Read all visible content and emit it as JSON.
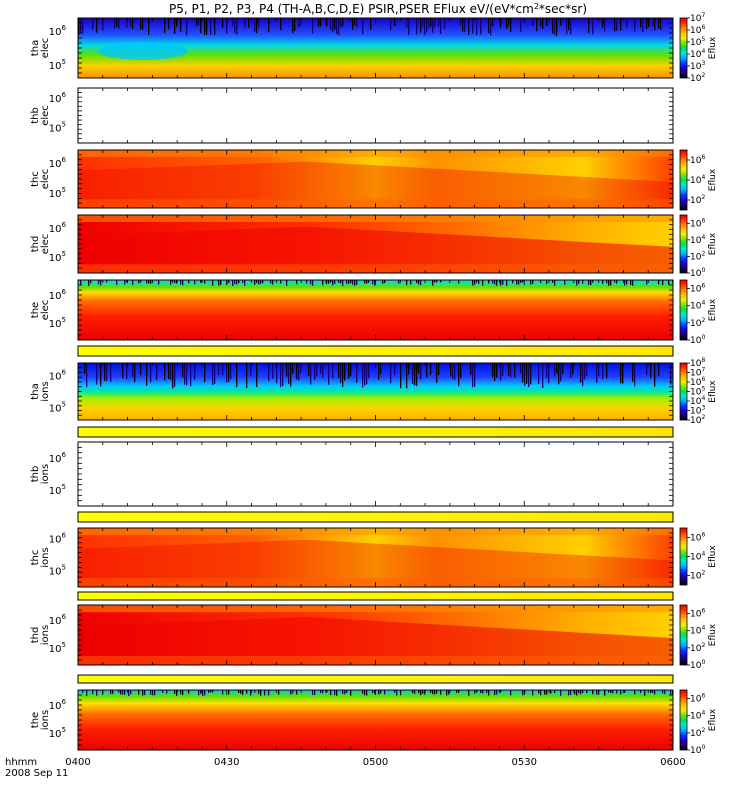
{
  "chart_data": {
    "type": "heatmap",
    "title": "P5, P1, P2, P3, P4 (TH-A,B,C,D,E) PSIR,PSER EFlux eV/(eV*cm",
    "title_sup": "2",
    "title_end": "*sec*sr)",
    "x_axis": {
      "prefix": "hhmm",
      "date": "2008 Sep 11",
      "ticks": [
        "0400",
        "0430",
        "0500",
        "0530",
        "0600"
      ],
      "range": [
        "04:00",
        "06:00"
      ]
    },
    "colorbar_title": "Eflux",
    "colormap": [
      "#000000",
      "#1a0060",
      "#2200d8",
      "#0040ff",
      "#00b0ff",
      "#00e8d0",
      "#00e060",
      "#80e000",
      "#f0f000",
      "#ffc000",
      "#ff8000",
      "#ff3000",
      "#ea0000"
    ],
    "panels": [
      {
        "probe": "tha",
        "species": "elec",
        "yticks": [
          {
            "base": "10",
            "exp": "6"
          },
          {
            "base": "10",
            "exp": "5"
          }
        ],
        "cbar": [
          {
            "base": "10",
            "exp": "7"
          },
          {
            "base": "10",
            "exp": "6"
          },
          {
            "base": "10",
            "exp": "5"
          },
          {
            "base": "10",
            "exp": "4"
          },
          {
            "base": "10",
            "exp": "3"
          },
          {
            "base": "10",
            "exp": "2"
          }
        ],
        "cbar_range": [
          2,
          7
        ]
      },
      {
        "probe": "thb",
        "species": "elec",
        "yticks": [
          {
            "base": "10",
            "exp": "6"
          },
          {
            "base": "10",
            "exp": "5"
          }
        ],
        "cbar": [],
        "empty": true
      },
      {
        "probe": "thc",
        "species": "elec",
        "yticks": [
          {
            "base": "10",
            "exp": "6"
          },
          {
            "base": "10",
            "exp": "5"
          }
        ],
        "cbar": [
          {
            "base": "10",
            "exp": "6"
          },
          {
            "base": "10",
            "exp": "4"
          },
          {
            "base": "10",
            "exp": "2"
          }
        ],
        "cbar_range": [
          1,
          7
        ]
      },
      {
        "probe": "thd",
        "species": "elec",
        "yticks": [
          {
            "base": "10",
            "exp": "6"
          },
          {
            "base": "10",
            "exp": "5"
          }
        ],
        "cbar": [
          {
            "base": "10",
            "exp": "6"
          },
          {
            "base": "10",
            "exp": "4"
          },
          {
            "base": "10",
            "exp": "2"
          },
          {
            "base": "10",
            "exp": "0"
          }
        ],
        "cbar_range": [
          0,
          7
        ]
      },
      {
        "probe": "the",
        "species": "elec",
        "yticks": [
          {
            "base": "10",
            "exp": "6"
          },
          {
            "base": "10",
            "exp": "5"
          }
        ],
        "cbar": [
          {
            "base": "10",
            "exp": "6"
          },
          {
            "base": "10",
            "exp": "4"
          },
          {
            "base": "10",
            "exp": "2"
          },
          {
            "base": "10",
            "exp": "0"
          }
        ],
        "cbar_range": [
          0,
          7
        ]
      },
      {
        "probe": "tha",
        "species": "ions",
        "yticks": [
          {
            "base": "10",
            "exp": "6"
          },
          {
            "base": "10",
            "exp": "5"
          }
        ],
        "cbar": [
          {
            "base": "10",
            "exp": "8"
          },
          {
            "base": "10",
            "exp": "7"
          },
          {
            "base": "10",
            "exp": "6"
          },
          {
            "base": "10",
            "exp": "5"
          },
          {
            "base": "10",
            "exp": "4"
          },
          {
            "base": "10",
            "exp": "3"
          },
          {
            "base": "10",
            "exp": "2"
          }
        ],
        "cbar_range": [
          2,
          8
        ]
      },
      {
        "probe": "thb",
        "species": "ions",
        "yticks": [
          {
            "base": "10",
            "exp": "6"
          },
          {
            "base": "10",
            "exp": "5"
          }
        ],
        "cbar": [],
        "empty": true
      },
      {
        "probe": "thc",
        "species": "ions",
        "yticks": [
          {
            "base": "10",
            "exp": "6"
          },
          {
            "base": "10",
            "exp": "5"
          }
        ],
        "cbar": [
          {
            "base": "10",
            "exp": "6"
          },
          {
            "base": "10",
            "exp": "4"
          },
          {
            "base": "10",
            "exp": "2"
          }
        ],
        "cbar_range": [
          1,
          7
        ]
      },
      {
        "probe": "thd",
        "species": "ions",
        "yticks": [
          {
            "base": "10",
            "exp": "6"
          },
          {
            "base": "10",
            "exp": "5"
          }
        ],
        "cbar": [
          {
            "base": "10",
            "exp": "6"
          },
          {
            "base": "10",
            "exp": "4"
          },
          {
            "base": "10",
            "exp": "2"
          },
          {
            "base": "10",
            "exp": "0"
          }
        ],
        "cbar_range": [
          0,
          7
        ]
      },
      {
        "probe": "the",
        "species": "ions",
        "yticks": [
          {
            "base": "10",
            "exp": "6"
          },
          {
            "base": "10",
            "exp": "5"
          }
        ],
        "cbar": [
          {
            "base": "10",
            "exp": "6"
          },
          {
            "base": "10",
            "exp": "4"
          },
          {
            "base": "10",
            "exp": "2"
          },
          {
            "base": "10",
            "exp": "0"
          }
        ],
        "cbar_range": [
          0,
          7
        ]
      }
    ]
  }
}
